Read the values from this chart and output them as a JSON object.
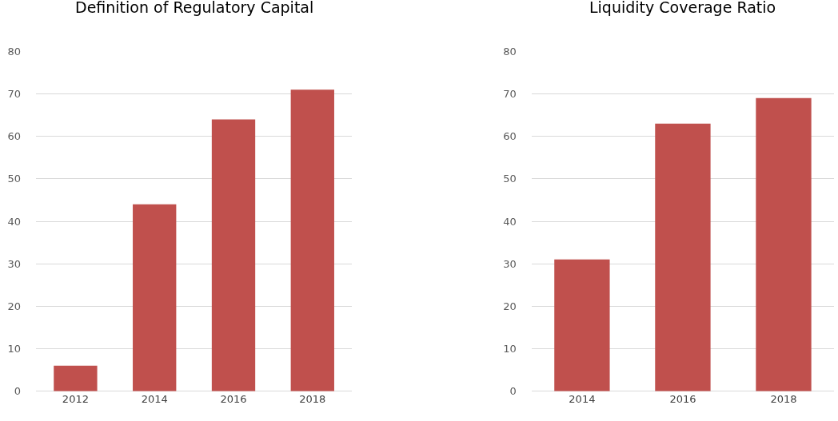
{
  "chart_data": [
    {
      "type": "bar",
      "title": "Definition of Regulatory Capital",
      "categories": [
        "2012",
        "2014",
        "2016",
        "2018"
      ],
      "values": [
        6,
        44,
        64,
        71
      ],
      "color": "#c0504d",
      "ylim": [
        0,
        80
      ],
      "yticks": [
        0,
        10,
        20,
        30,
        40,
        50,
        60,
        70,
        80
      ],
      "grid": "y"
    },
    {
      "type": "bar",
      "title": "Liquidity Coverage Ratio",
      "categories": [
        "2014",
        "2016",
        "2018"
      ],
      "values": [
        31,
        63,
        69
      ],
      "color": "#c0504d",
      "ylim": [
        0,
        80
      ],
      "yticks": [
        0,
        10,
        20,
        30,
        40,
        50,
        60,
        70,
        80
      ],
      "grid": "y"
    }
  ]
}
